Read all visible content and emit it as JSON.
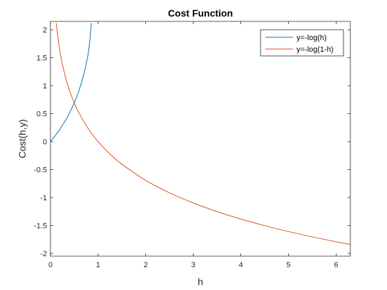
{
  "chart_data": {
    "type": "line",
    "title": "Cost Function",
    "xlabel": "h",
    "ylabel": "Cost(h,y)",
    "xlim": [
      0,
      6.3
    ],
    "ylim": [
      -2.05,
      2.15
    ],
    "x_ticks": [
      0,
      1,
      2,
      3,
      4,
      5,
      6
    ],
    "y_ticks": [
      -2,
      -1.5,
      -1,
      -0.5,
      0,
      0.5,
      1,
      1.5,
      2
    ],
    "grid": false,
    "legend_position": "top-right",
    "series": [
      {
        "name": "y=-log(h)",
        "color": "#0072bd",
        "x": [
          0.0,
          0.1,
          0.2,
          0.3,
          0.4,
          0.5,
          0.6,
          0.7,
          0.8,
          0.86
        ],
        "y": [
          0.0,
          0.105,
          0.223,
          0.357,
          0.511,
          0.693,
          0.916,
          1.204,
          1.609,
          2.12
        ]
      },
      {
        "name": "y=-log(1-h)",
        "color": "#d95319",
        "x": [
          0.12,
          0.2,
          0.3,
          0.4,
          0.5,
          0.6,
          0.8,
          1.0,
          1.25,
          1.5,
          2.0,
          2.5,
          3.0,
          3.5,
          4.0,
          4.5,
          5.0,
          5.5,
          6.0,
          6.3
        ],
        "y": [
          2.12,
          1.609,
          1.204,
          0.916,
          0.693,
          0.511,
          0.223,
          0.0,
          -0.223,
          -0.405,
          -0.693,
          -0.916,
          -1.099,
          -1.253,
          -1.386,
          -1.504,
          -1.609,
          -1.705,
          -1.792,
          -1.84
        ]
      }
    ]
  }
}
